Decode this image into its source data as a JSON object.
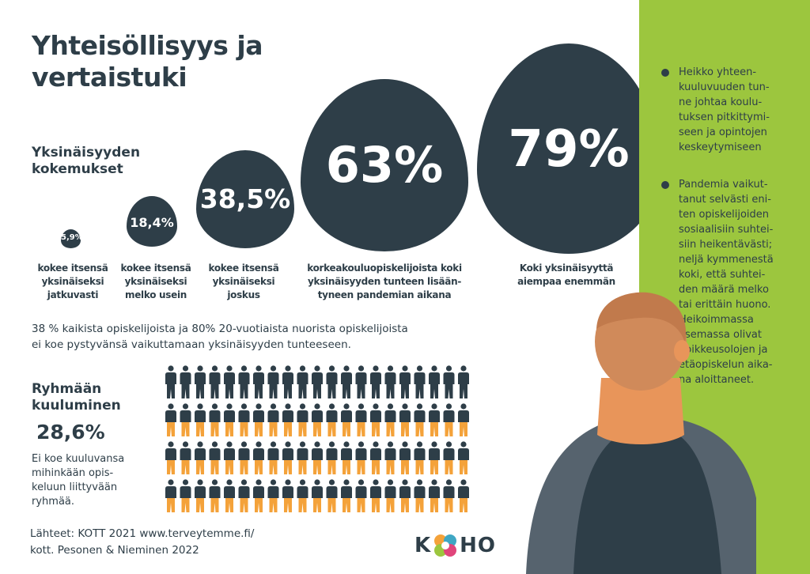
{
  "title_line1": "Yhteisöllisyys ja",
  "title_line2": "vertaistuki",
  "loneliness": {
    "heading_line1": "Yksinäisyyden",
    "heading_line2": "kokemukset",
    "stats": [
      {
        "value": "5,9%",
        "caption": [
          "kokee itsensä",
          "yksinäiseksi",
          "jatkuvasti"
        ]
      },
      {
        "value": "18,4%",
        "caption": [
          "kokee itsensä",
          "yksinäiseksi",
          "melko usein"
        ]
      },
      {
        "value": "38,5%",
        "caption": [
          "kokee itsensä",
          "yksinäiseksi",
          "joskus"
        ]
      },
      {
        "value": "63%",
        "caption": [
          "korkeakouluopiskelijoista koki",
          "yksinäisyyden tunteen lisään-",
          "tyneen pandemian aikana"
        ]
      },
      {
        "value": "79%",
        "caption": [
          "Koki yksinäisyyttä",
          "aiempaa enemmän"
        ]
      }
    ]
  },
  "statement_line1": "38 % kaikista opiskelijoista ja 80% 20-vuotiaista nuorista opiskelijoista",
  "statement_line2": "ei koe pystyvänsä vaikuttamaan yksinäisyyden tunteeseen.",
  "belonging": {
    "heading_line1": "Ryhmään",
    "heading_line2": "kuuluminen",
    "value": "28,6%",
    "text": [
      "Ei koe kuuluvansa",
      "mihinkään opis-",
      "keluun liittyvään",
      "ryhmää."
    ]
  },
  "bullets": [
    [
      "Heikko yhteen-",
      "kuuluvuuden tun-",
      "ne johtaa koulu-",
      "tuksen pitkittymi-",
      "seen ja opintojen",
      "keskeytymiseen"
    ],
    [
      "Pandemia vaikut-",
      "tanut selvästi eni-",
      "ten opiskelijoiden",
      "sosiaalisiin suhtei-",
      "siin heikentävästi;",
      "neljä kymmenestä",
      "koki, että suhtei-",
      "den määrä melko",
      "tai erittäin huono.",
      "Heikoimmassa",
      "asemassa olivat",
      "poikkeusolojen ja",
      "etäopiskelun aika-",
      "na aloittaneet."
    ]
  ],
  "sources_line1": "Lähteet: KOTT 2021 www.terveytemme.fi/",
  "sources_line2": "kott. Pesonen & Nieminen 2022",
  "logo": {
    "left": "K",
    "right": "HO"
  },
  "colors": {
    "dark": "#2e3e48",
    "green": "#9cc63e",
    "orange": "#f4a23a",
    "skin": "#d08a5a"
  },
  "people_grid": {
    "rows": 4,
    "cols": 21,
    "dark_count": 21
  }
}
